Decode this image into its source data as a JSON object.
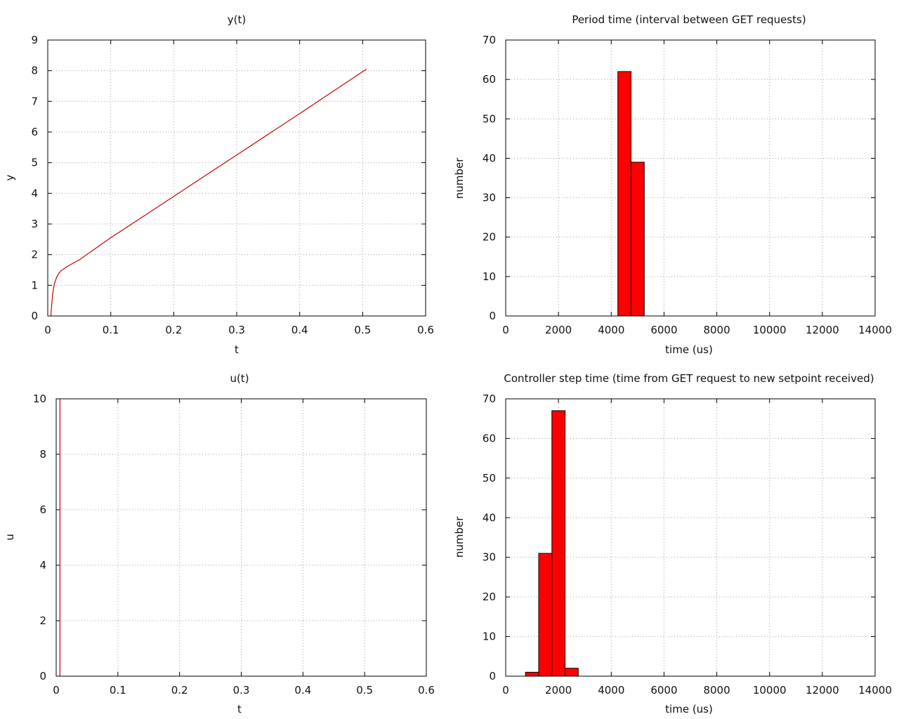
{
  "chart_data": [
    {
      "id": "y_plot",
      "type": "line",
      "title": "y(t)",
      "xlabel": "t",
      "ylabel": "y",
      "xlim": [
        0,
        0.6
      ],
      "ylim": [
        0,
        9
      ],
      "xticks": [
        "0",
        "0.1",
        "0.2",
        "0.3",
        "0.4",
        "0.5",
        "0.6"
      ],
      "yticks": [
        "0",
        "1",
        "2",
        "3",
        "4",
        "5",
        "6",
        "7",
        "8",
        "9"
      ],
      "grid": true,
      "color": "#cc0000",
      "series": [
        {
          "x": [
            0.005,
            0.006,
            0.007,
            0.008,
            0.01,
            0.012,
            0.015,
            0.018,
            0.021,
            0.025,
            0.03,
            0.04,
            0.05,
            0.1,
            0.2,
            0.3,
            0.4,
            0.506
          ],
          "y": [
            0,
            0.3,
            0.55,
            0.75,
            1.0,
            1.15,
            1.3,
            1.4,
            1.47,
            1.53,
            1.6,
            1.72,
            1.83,
            2.55,
            3.9,
            5.25,
            6.6,
            8.05
          ]
        }
      ]
    },
    {
      "id": "period_hist",
      "type": "bar",
      "title": "Period time (interval between GET requests)",
      "xlabel": "time (us)",
      "ylabel": "number",
      "xlim": [
        0,
        14000
      ],
      "ylim": [
        0,
        70
      ],
      "xticks": [
        "0",
        "2000",
        "4000",
        "6000",
        "8000",
        "10000",
        "12000",
        "14000"
      ],
      "yticks": [
        "0",
        "10",
        "20",
        "30",
        "40",
        "50",
        "60",
        "70"
      ],
      "grid": true,
      "color": "#ff0000",
      "bin_width": 500,
      "bins": [
        {
          "start": 4250,
          "value": 62
        },
        {
          "start": 4750,
          "value": 39
        }
      ]
    },
    {
      "id": "u_plot",
      "type": "line",
      "title": "u(t)",
      "xlabel": "t",
      "ylabel": "u",
      "xlim": [
        0,
        0.6
      ],
      "ylim": [
        0,
        10
      ],
      "xticks": [
        "0",
        "0.1",
        "0.2",
        "0.3",
        "0.4",
        "0.5",
        "0.6"
      ],
      "yticks": [
        "0",
        "2",
        "4",
        "6",
        "8",
        "10"
      ],
      "grid": true,
      "color": "#cc0000",
      "series": [
        {
          "x": [
            0.006,
            0.006
          ],
          "y": [
            0,
            10
          ]
        }
      ]
    },
    {
      "id": "step_hist",
      "type": "bar",
      "title": "Controller step time (time from GET request to new setpoint received)",
      "xlabel": "time (us)",
      "ylabel": "number",
      "xlim": [
        0,
        14000
      ],
      "ylim": [
        0,
        70
      ],
      "xticks": [
        "0",
        "2000",
        "4000",
        "6000",
        "8000",
        "10000",
        "12000",
        "14000"
      ],
      "yticks": [
        "0",
        "10",
        "20",
        "30",
        "40",
        "50",
        "60",
        "70"
      ],
      "grid": true,
      "color": "#ff0000",
      "bin_width": 500,
      "bins": [
        {
          "start": 750,
          "value": 1
        },
        {
          "start": 1250,
          "value": 31
        },
        {
          "start": 1750,
          "value": 67
        },
        {
          "start": 2250,
          "value": 2
        }
      ]
    }
  ]
}
